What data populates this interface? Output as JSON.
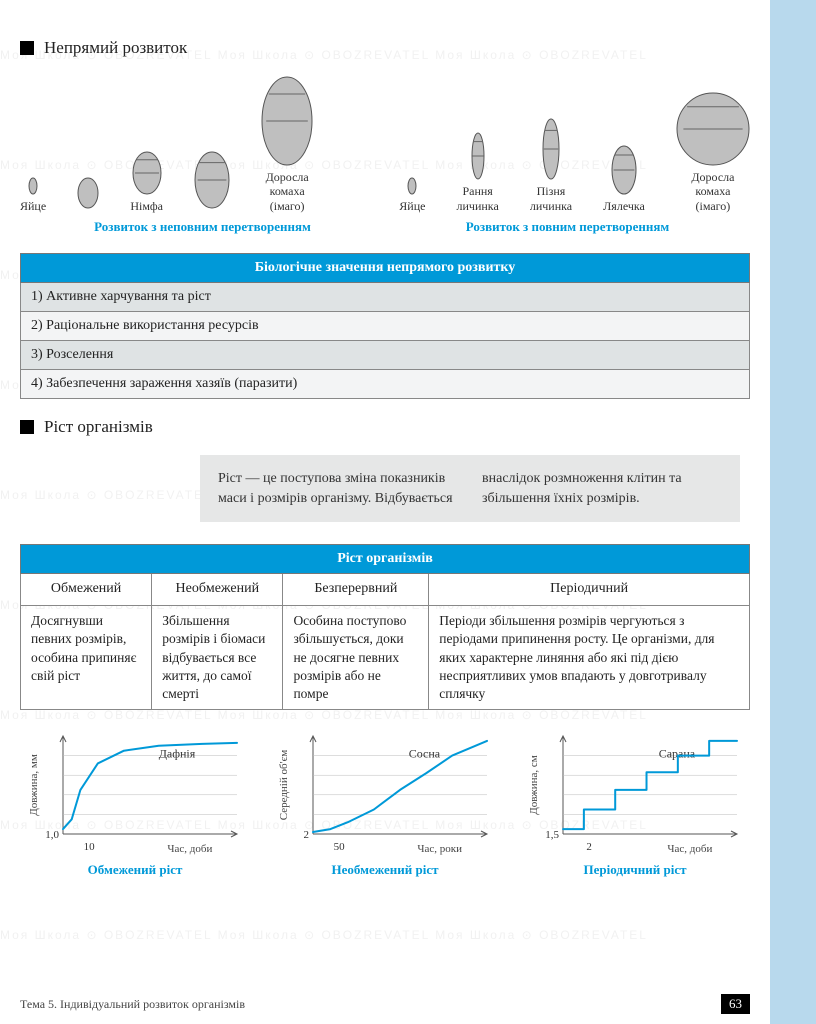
{
  "section1": {
    "title": "Непрямий розвиток"
  },
  "insect_diagram": {
    "group1_caption": "Розвиток з неповним перетворенням",
    "group2_caption": "Розвиток з повним перетворенням",
    "stages1": [
      {
        "label": "Яйце",
        "w": 10,
        "h": 18
      },
      {
        "label": "",
        "w": 22,
        "h": 32
      },
      {
        "label": "Німфа",
        "w": 30,
        "h": 44
      },
      {
        "label": "",
        "w": 36,
        "h": 58
      },
      {
        "label": "Доросла\nкомаха\n(імаго)",
        "w": 52,
        "h": 90
      }
    ],
    "stages2": [
      {
        "label": "Яйце",
        "w": 10,
        "h": 18
      },
      {
        "label": "Рання\nличинка",
        "w": 14,
        "h": 48
      },
      {
        "label": "Пізня\nличинка",
        "w": 18,
        "h": 62
      },
      {
        "label": "Лялечка",
        "w": 26,
        "h": 50
      },
      {
        "label": "Доросла\nкомаха\n(імаго)",
        "w": 74,
        "h": 74
      }
    ]
  },
  "table1": {
    "header": "Біологічне значення непрямого розвитку",
    "rows": [
      "1) Активне харчування та ріст",
      "2) Раціональне використання ресурсів",
      "3) Розселення",
      "4) Забезпечення зараження хазяїв (паразити)"
    ]
  },
  "section2": {
    "title": "Ріст організмів"
  },
  "definition": "Ріст — це поступова зміна показників маси і розмірів організму. Відбувається внаслідок розмноження клітин та збільшення їхніх розмірів.",
  "table2": {
    "header": "Ріст організмів",
    "cols": [
      "Обмежений",
      "Необмежений",
      "Безперервний",
      "Періодичний"
    ],
    "cells": [
      "Досягнувши певних розмірів, особина припиняє свій ріст",
      "Збільшення розмірів і біомаси відбувається все життя, до самої смерті",
      "Особина поступово збільшується, доки не досягне певних розмірів або не помре",
      "Періоди збільшення розмірів чергуються з періодами припинення росту. Це організми, для яких характерне линяння або які під дією несприятливих умов впадають у довготривалу сплячку"
    ]
  },
  "charts": {
    "accent": "#0099d8",
    "line_color": "#0099d8",
    "axis_color": "#555555",
    "grid_color": "#bbbbbb",
    "c1": {
      "caption": "Обмежений ріст",
      "series_label": "Дафнія",
      "ylabel": "Довжина, мм",
      "xlabel": "Час, доби",
      "y0_tick": "1,0",
      "x0_tick": "10",
      "points": [
        [
          0,
          0.05
        ],
        [
          0.05,
          0.15
        ],
        [
          0.1,
          0.45
        ],
        [
          0.2,
          0.72
        ],
        [
          0.35,
          0.85
        ],
        [
          0.55,
          0.9
        ],
        [
          0.8,
          0.92
        ],
        [
          1.0,
          0.93
        ]
      ]
    },
    "c2": {
      "caption": "Необмежений ріст",
      "series_label": "Сосна",
      "ylabel": "Середній об'єм",
      "xlabel": "Час, роки",
      "y0_tick": "2",
      "x0_tick": "50",
      "points": [
        [
          0,
          0.02
        ],
        [
          0.1,
          0.05
        ],
        [
          0.2,
          0.12
        ],
        [
          0.35,
          0.25
        ],
        [
          0.5,
          0.45
        ],
        [
          0.65,
          0.62
        ],
        [
          0.8,
          0.8
        ],
        [
          1.0,
          0.95
        ]
      ]
    },
    "c3": {
      "caption": "Періодичний ріст",
      "series_label": "Сарана",
      "ylabel": "Довжина, см",
      "xlabel": "Час, доби",
      "y0_tick": "1,5",
      "x0_tick": "2",
      "steps": [
        [
          0,
          0.05
        ],
        [
          0.12,
          0.05
        ],
        [
          0.12,
          0.25
        ],
        [
          0.3,
          0.25
        ],
        [
          0.3,
          0.45
        ],
        [
          0.48,
          0.45
        ],
        [
          0.48,
          0.63
        ],
        [
          0.66,
          0.63
        ],
        [
          0.66,
          0.8
        ],
        [
          0.84,
          0.8
        ],
        [
          0.84,
          0.95
        ],
        [
          1.0,
          0.95
        ]
      ]
    }
  },
  "footer": {
    "topic": "Тема 5.  Індивідуальний розвиток організмів",
    "page": "63"
  },
  "watermark": "Моя Школа  ⊙ OBOZREVATEL   Моя Школа  ⊙ OBOZREVATEL   Моя Школа  ⊙ OBOZREVATEL"
}
